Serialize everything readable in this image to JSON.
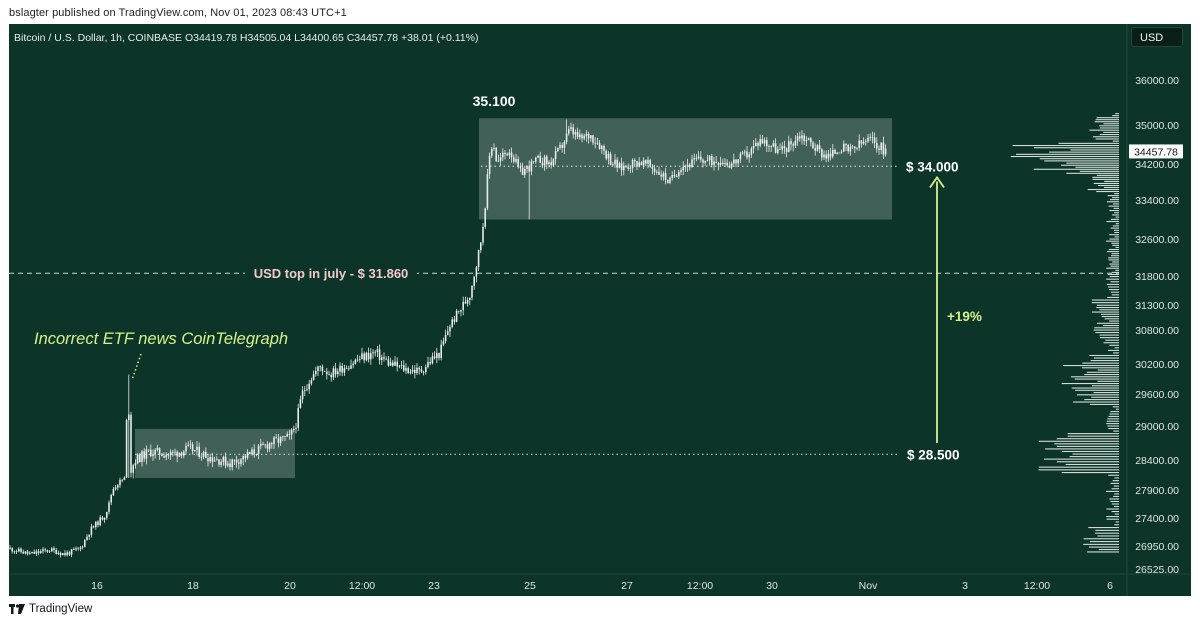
{
  "header": {
    "publisher": "bslagter published on TradingView.com, Nov 01, 2023 08:43 UTC+1"
  },
  "symbol_info": "Bitcoin / U.S. Dollar, 1h, COINBASE  O34419.78  H34505.04  L34400.65  C34457.78  +38.01 (+0.11%)",
  "currency": "USD",
  "footer": {
    "brand": "TradingView"
  },
  "colors": {
    "background": "#0c3428",
    "candle": "#e6ece9",
    "box_fill": "#ffffff",
    "arrow": "#d7f28a",
    "dashed_line": "#c7d8cc",
    "dotted_line": "#b9d3be",
    "etf_text": "#d7f28a",
    "usd_top_text": "#f4c9cd"
  },
  "chart_data": {
    "type": "candlestick",
    "title": "",
    "xlabel": "",
    "ylabel": "",
    "ylim": [
      26350,
      36700
    ],
    "y_ticks": [
      "36000.00",
      "35000.00",
      "34200.00",
      "33400.00",
      "32600.00",
      "31800.00",
      "31300.00",
      "30800.00",
      "30200.00",
      "29600.00",
      "29000.00",
      "28400.00",
      "27900.00",
      "27400.00",
      "26950.00",
      "26525.00"
    ],
    "x_ticks": [
      "16",
      "18",
      "20",
      "12:00",
      "23",
      "25",
      "27",
      "12:00",
      "30",
      "Nov",
      "3",
      "12:00",
      "6"
    ],
    "x_axis": "hourly, Oct 14 2023 – Nov 06 2023",
    "last_price": "34457.78",
    "series": [
      {
        "segment": "Oct 14-16 pre-news",
        "range": [
          26800,
          27000
        ]
      },
      {
        "segment": "Oct 16 ETF spike",
        "high": 30000,
        "close": 28200
      },
      {
        "segment": "Oct 16-20 consolidation",
        "range": [
          28100,
          29050
        ]
      },
      {
        "segment": "Oct 20-23 climb",
        "range": [
          29500,
          30550
        ]
      },
      {
        "segment": "Oct 23-24 breakout",
        "high": 35100
      },
      {
        "segment": "Oct 24 - Nov 01 range",
        "range": [
          33900,
          35150
        ]
      }
    ],
    "annotations": {
      "etf_label": "Incorrect ETF news CoinTelegraph",
      "high_label": "35.100",
      "usd_top_label": "USD top in july - $ 31.860",
      "usd_top_value": 31860,
      "level_34000_label": "$ 34.000",
      "level_34000": 34000,
      "level_28500_label": "$ 28.500",
      "level_28500": 28500,
      "gain_label": "+19%",
      "upper_box": {
        "low": 33000,
        "high": 35150
      },
      "lower_box": {
        "low": 28100,
        "high": 28950
      }
    },
    "volume_profile": "horizontal histogram on right side near price axis"
  }
}
